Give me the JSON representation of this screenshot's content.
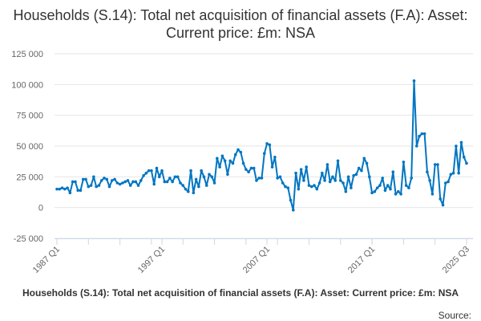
{
  "chart_data": {
    "type": "line",
    "title": "Households (S.14): Total net acquisition of financial assets (F.A): Asset: Current price: £m: NSA",
    "xlabel": "",
    "ylabel": "",
    "ylim": [
      -25000,
      125000
    ],
    "yticks": [
      -25000,
      0,
      25000,
      50000,
      75000,
      100000,
      125000
    ],
    "ytick_labels": [
      "-25 000",
      "0",
      "25 000",
      "50 000",
      "75 000",
      "100 000",
      "125 000"
    ],
    "x_start": "1987 Q1",
    "x_end": "2025 Q3",
    "xtick_labels": [
      "1987 Q1",
      "1997 Q1",
      "2007 Q1",
      "2017 Q1",
      "2025 Q3"
    ],
    "grid": true,
    "legend": "none",
    "series": [
      {
        "color": "#0075c2",
        "values": [
          15000,
          15000,
          16000,
          15000,
          16000,
          12000,
          21000,
          21000,
          14000,
          14000,
          23000,
          23000,
          17000,
          18000,
          25000,
          17000,
          18000,
          22000,
          24000,
          23000,
          17000,
          22000,
          23000,
          20000,
          19000,
          20000,
          21000,
          22000,
          18000,
          21000,
          21000,
          18000,
          22000,
          26000,
          28000,
          30000,
          30000,
          19000,
          32000,
          25000,
          30000,
          21000,
          21000,
          24000,
          21000,
          25000,
          25000,
          20000,
          18000,
          15000,
          13000,
          30000,
          12000,
          23000,
          17000,
          30000,
          25000,
          18000,
          27000,
          25000,
          20000,
          40000,
          33000,
          42000,
          38000,
          27000,
          38000,
          36000,
          43000,
          47000,
          45000,
          36000,
          31000,
          29000,
          32000,
          32000,
          22000,
          24000,
          24000,
          44000,
          52000,
          51000,
          33000,
          41000,
          24000,
          25000,
          20000,
          17000,
          16000,
          6000,
          -2000,
          28000,
          15000,
          31000,
          22000,
          33000,
          18000,
          17000,
          18000,
          15000,
          20000,
          28000,
          22000,
          35000,
          21000,
          25000,
          22000,
          38000,
          22000,
          20000,
          13000,
          25000,
          16000,
          26000,
          27000,
          32000,
          30000,
          40000,
          36000,
          25000,
          12000,
          13000,
          16000,
          18000,
          24000,
          14000,
          18000,
          15000,
          29000,
          11000,
          13000,
          11000,
          37000,
          18000,
          16000,
          24000,
          103000,
          50000,
          58000,
          60000,
          60000,
          29000,
          22000,
          11000,
          35000,
          35000,
          7000,
          2000,
          20000,
          21000,
          27000,
          28000,
          50000,
          28000,
          53000,
          41000,
          36000
        ]
      }
    ]
  },
  "footer": {
    "series_label": "Households (S.14): Total net acquisition of financial assets (F.A): Asset: Current price: £m: NSA",
    "source_label": "Source:"
  }
}
